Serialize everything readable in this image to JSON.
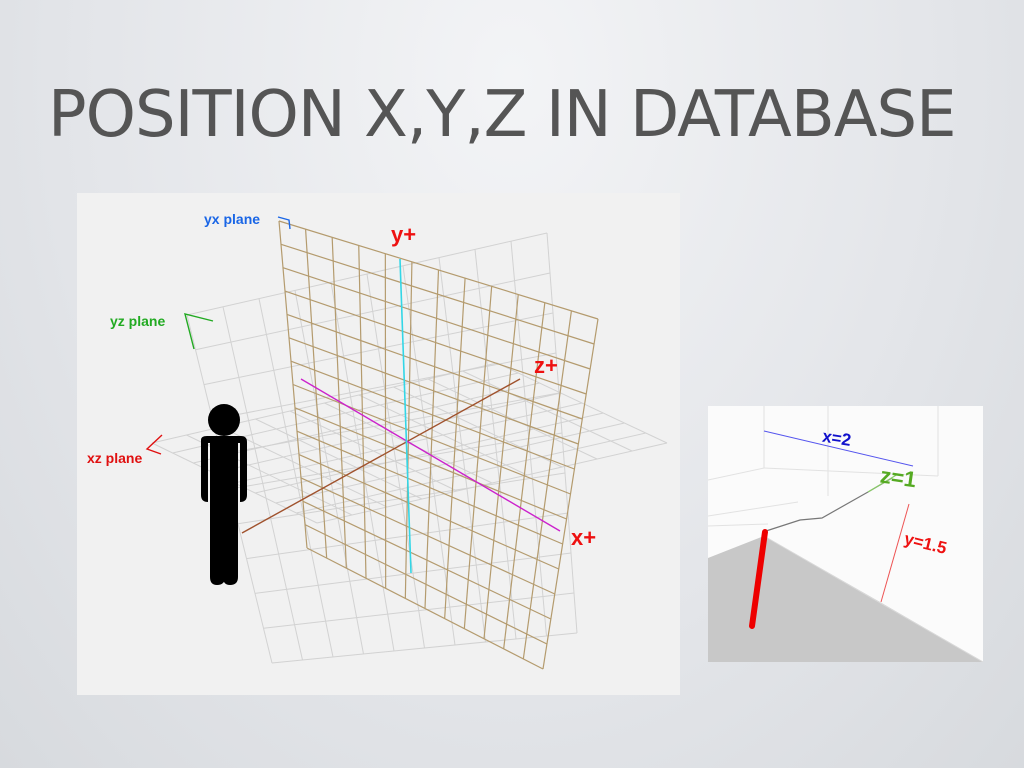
{
  "slide": {
    "title": "POSITION X,Y,Z IN DATABASE"
  },
  "axes_diagram": {
    "plane_labels": {
      "yx": "yx plane",
      "yz": "yz plane",
      "xz": "xz plane"
    },
    "axis_labels": {
      "y": "y+",
      "z": "z+",
      "x": "x+"
    },
    "colors": {
      "yx_plane_label": "#1a66e6",
      "yz_plane_label": "#22aa22",
      "xz_plane_label": "#e01010",
      "axis_label": "#ee1111",
      "y_axis": "#33d6e6",
      "x_axis": "#cc22cc",
      "z_axis": "#a0522d",
      "wall_grid": "#b49b6e",
      "faint_grid": "#cfcfcf"
    },
    "person_icon": "person-silhouette"
  },
  "position_inset": {
    "labels": {
      "x": "x=2",
      "z": "z=1",
      "y": "y=1.5"
    },
    "colors": {
      "x": "#1111cc",
      "z": "#55aa22",
      "y": "#ee1111",
      "marker": "#ee0000",
      "floor": "#c8c8c8"
    }
  }
}
